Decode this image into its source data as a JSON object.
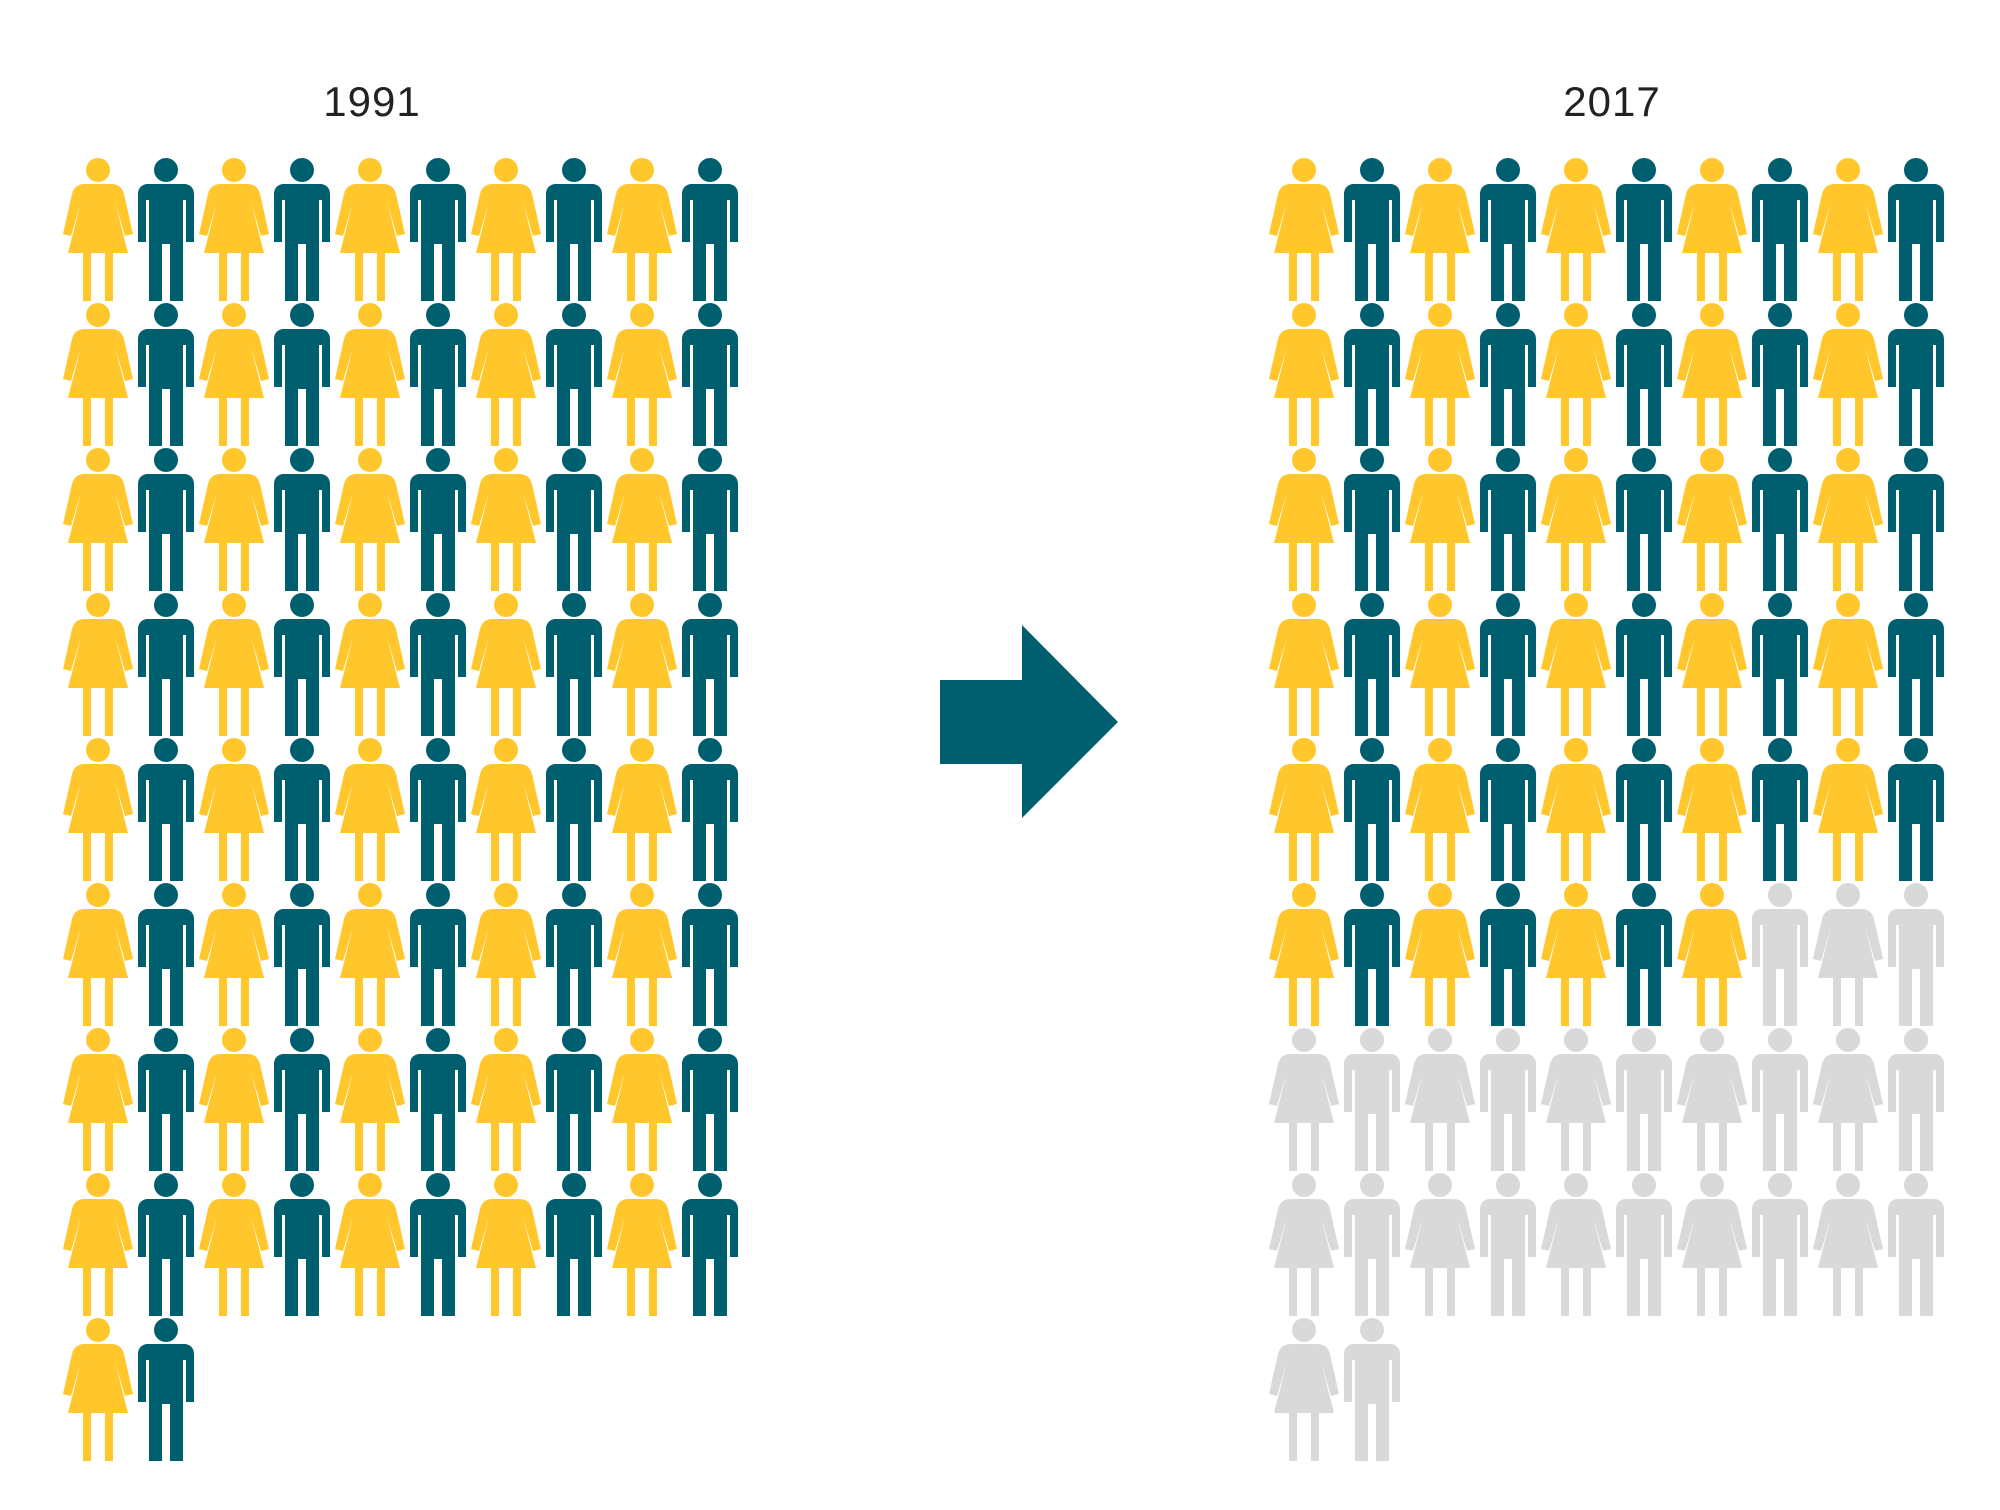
{
  "colors": {
    "female": "#FFC72C",
    "male": "#005F6E",
    "inactive": "#D9D9D9",
    "arrow": "#005F6E"
  },
  "chart_data": [
    {
      "type": "pictogram",
      "title": "1991",
      "total": 82,
      "active": 82,
      "columns": 10,
      "pattern": [
        "female",
        "male"
      ]
    },
    {
      "type": "pictogram",
      "title": "2017",
      "total": 82,
      "active": 57,
      "columns": 10,
      "pattern": [
        "female",
        "male"
      ]
    }
  ]
}
